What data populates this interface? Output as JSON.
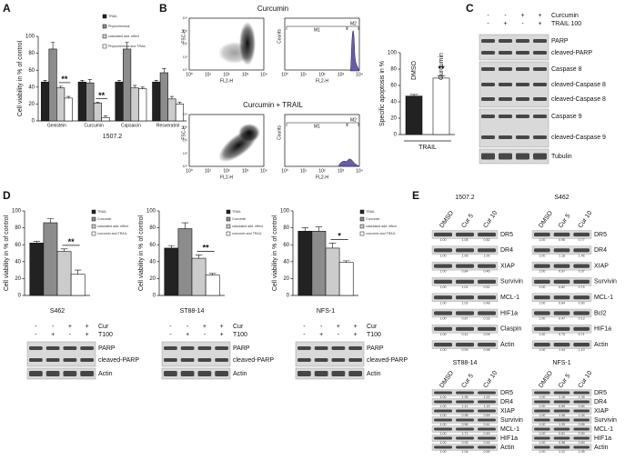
{
  "panel_labels": [
    "A",
    "B",
    "C",
    "D",
    "E"
  ],
  "chart_data": [
    {
      "type": "bar",
      "y_label": "Cell viability in % of control",
      "x_label": "1507.2",
      "categories": [
        "Genistein",
        "Curcumin",
        "Capsaicin",
        "Resveratrol"
      ],
      "series": [
        {
          "name": "TRAIL",
          "color": "#222222",
          "values": [
            46,
            46,
            46,
            46
          ],
          "errors": [
            2,
            2,
            2,
            2
          ]
        },
        {
          "name": "Phytochemical",
          "color": "#8c8c8c",
          "values": [
            85,
            45,
            85,
            57
          ],
          "errors": [
            8,
            4,
            8,
            5
          ]
        },
        {
          "name": "calculated add. effect",
          "color": "#cccccc",
          "values": [
            39,
            21,
            39,
            26
          ],
          "errors": [
            2,
            1,
            3,
            3
          ]
        },
        {
          "name": "Phytochemical and TRAIL",
          "color": "#ffffff",
          "values": [
            27,
            4,
            38,
            20
          ],
          "errors": [
            2,
            2,
            2,
            2
          ]
        }
      ],
      "ylim": [
        0,
        100
      ],
      "yticks": [
        0,
        20,
        40,
        60,
        80,
        100
      ],
      "annotations": [
        "**",
        "**"
      ]
    },
    {
      "type": "bar",
      "y_label": "Specific apoptosis in %",
      "x_label": "TRAIL",
      "categories": [
        "DMSO",
        "Curcumin"
      ],
      "values": [
        47,
        69
      ],
      "errors": [
        2,
        3
      ],
      "colors": [
        "#222222",
        "#ffffff"
      ],
      "ylim": [
        0,
        100
      ],
      "yticks": [
        0,
        20,
        40,
        60,
        80,
        100
      ],
      "annotations": [
        "**"
      ]
    },
    {
      "type": "bar",
      "y_label": "Cell viability in % of control",
      "x_label": "S462",
      "series": [
        {
          "name": "TRAIL",
          "color": "#222222",
          "values": [
            62
          ],
          "errors": [
            2
          ]
        },
        {
          "name": "Curcumin",
          "color": "#8c8c8c",
          "values": [
            86
          ],
          "errors": [
            5
          ]
        },
        {
          "name": "calculated add. effect",
          "color": "#cccccc",
          "values": [
            52
          ],
          "errors": [
            3
          ]
        },
        {
          "name": "curcumin and TRAIL",
          "color": "#ffffff",
          "values": [
            25
          ],
          "errors": [
            5
          ]
        }
      ],
      "ylim": [
        0,
        100
      ],
      "yticks": [
        0,
        20,
        40,
        60,
        80,
        100
      ],
      "annotations": [
        "**"
      ]
    },
    {
      "type": "bar",
      "y_label": "Cell viability in % of control",
      "x_label": "ST88-14",
      "series": [
        {
          "name": "TRAIL",
          "color": "#222222",
          "values": [
            56
          ],
          "errors": [
            3
          ]
        },
        {
          "name": "Curcumin",
          "color": "#8c8c8c",
          "values": [
            79
          ],
          "errors": [
            7
          ]
        },
        {
          "name": "calculated add. effect",
          "color": "#cccccc",
          "values": [
            44
          ],
          "errors": [
            4
          ]
        },
        {
          "name": "curcumin and TRAIL",
          "color": "#ffffff",
          "values": [
            24
          ],
          "errors": [
            2
          ]
        }
      ],
      "ylim": [
        0,
        100
      ],
      "yticks": [
        0,
        20,
        40,
        60,
        80,
        100
      ],
      "annotations": [
        "**"
      ]
    },
    {
      "type": "bar",
      "y_label": "Cell viability in % of control",
      "x_label": "NFS-1",
      "series": [
        {
          "name": "TRAIL",
          "color": "#222222",
          "values": [
            76
          ],
          "errors": [
            4
          ]
        },
        {
          "name": "Curcumin",
          "color": "#8c8c8c",
          "values": [
            76
          ],
          "errors": [
            5
          ]
        },
        {
          "name": "calculated add. effect",
          "color": "#cccccc",
          "values": [
            56
          ],
          "errors": [
            6
          ]
        },
        {
          "name": "curcumin and TRAIL",
          "color": "#ffffff",
          "values": [
            39
          ],
          "errors": [
            2
          ]
        }
      ],
      "ylim": [
        0,
        100
      ],
      "yticks": [
        0,
        20,
        40,
        60,
        80,
        100
      ],
      "annotations": [
        "*"
      ]
    }
  ],
  "flow_cytometry": {
    "rows": [
      {
        "title": "Curcumin"
      },
      {
        "title": "Curcumin + TRAIL"
      }
    ],
    "dot_y_label": "FSC-H",
    "x_label": "FL2-H",
    "hist_y_label": "Counts",
    "gates": [
      "M1",
      "M2"
    ],
    "ticks": [
      "10⁰",
      "10¹",
      "10²",
      "10³",
      "10⁴"
    ]
  },
  "blot_c": {
    "conditions": [
      {
        "label": "Curcumin",
        "signs": [
          "-",
          "-",
          "+",
          "+"
        ]
      },
      {
        "label": "TRAIL 100",
        "signs": [
          "-",
          "+",
          "-",
          "+"
        ]
      }
    ],
    "proteins": [
      "PARP",
      "cleaved-PARP",
      "Caspase 8",
      "cleaved-Caspase 8",
      "cleaved-Caspase 8",
      "Caspase 9",
      "cleaved-Caspase 9",
      "Tubulin"
    ]
  },
  "blots_d": [
    {
      "conditions": [
        {
          "label": "Cur",
          "signs": [
            "-",
            "-",
            "+",
            "+"
          ]
        },
        {
          "label": "T100",
          "signs": [
            "-",
            "+",
            "-",
            "+"
          ]
        }
      ],
      "proteins": [
        "PARP",
        "cleaved-PARP",
        "Actin"
      ]
    },
    {
      "conditions": [
        {
          "label": "Cur",
          "signs": [
            "-",
            "-",
            "+",
            "+"
          ]
        },
        {
          "label": "T100",
          "signs": [
            "-",
            "+",
            "-",
            "+"
          ]
        }
      ],
      "proteins": [
        "PARP",
        "cleaved-PARP",
        "Actin"
      ]
    },
    {
      "conditions": [
        {
          "label": "Cur",
          "signs": [
            "-",
            "-",
            "+",
            "+"
          ]
        },
        {
          "label": "T100",
          "signs": [
            "-",
            "+",
            "-",
            "+"
          ]
        }
      ],
      "proteins": [
        "PARP",
        "cleaved-PARP",
        "Actin"
      ]
    }
  ],
  "blots_e": [
    {
      "title": "1507.2",
      "lanes": [
        "DMSO",
        "Cur 5",
        "Cur 10"
      ],
      "rows": [
        {
          "protein": "DR5",
          "quant": [
            "1.00",
            "1.08",
            "0.82"
          ]
        },
        {
          "protein": "DR4",
          "quant": [
            "1.00",
            "1.06",
            "1.00"
          ]
        },
        {
          "protein": "XIAP",
          "quant": [
            "1.00",
            "0.84",
            "0.46"
          ]
        },
        {
          "protein": "Survivin",
          "quant": [
            "1.00",
            "1.01",
            "0.51"
          ]
        },
        {
          "protein": "MCL-1",
          "quant": [
            "1.00",
            "1.02",
            "0.48"
          ]
        },
        {
          "protein": "HIF1a",
          "quant": [
            "1.00",
            "0.87",
            "0.33"
          ]
        },
        {
          "protein": "Claspin",
          "quant": [
            "1.00",
            "0.41",
            "0.09"
          ]
        },
        {
          "protein": "Actin",
          "quant": [
            "1.00",
            "0.93",
            "0.98"
          ]
        }
      ]
    },
    {
      "title": "S462",
      "lanes": [
        "DMSO",
        "Cur 5",
        "Cur 10"
      ],
      "rows": [
        {
          "protein": "DR5",
          "quant": [
            "1.00",
            "0.96",
            "0.77"
          ]
        },
        {
          "protein": "DR4",
          "quant": [
            "1.00",
            "1.18",
            "1.46"
          ]
        },
        {
          "protein": "XIAP",
          "quant": [
            "1.00",
            "0.97",
            "0.37"
          ]
        },
        {
          "protein": "Survivin",
          "quant": [
            "1.00",
            "0.82",
            "0.74"
          ]
        },
        {
          "protein": "MCL-1",
          "quant": [
            "1.00",
            "0.84",
            "0.90"
          ]
        },
        {
          "protein": "Bcl2",
          "quant": [
            "1.00",
            "0.47",
            "0.13"
          ]
        },
        {
          "protein": "HIF1a",
          "quant": [
            "1.00",
            "0.75",
            "0.71"
          ]
        },
        {
          "protein": "Actin",
          "quant": [
            "1.00",
            "1.04",
            "1.10"
          ]
        }
      ]
    },
    {
      "title": "ST88-14",
      "lanes": [
        "DMSO",
        "Cur 5",
        "Cur 10"
      ],
      "rows": [
        {
          "protein": "DR5",
          "quant": [
            "1.00",
            "1.35",
            "1.22"
          ]
        },
        {
          "protein": "DR4",
          "quant": [
            "1.00",
            "1.11",
            "1.15"
          ]
        },
        {
          "protein": "XIAP",
          "quant": [
            "1.00",
            "0.98",
            "0.69"
          ]
        },
        {
          "protein": "Survivin",
          "quant": [
            "1.00",
            "0.96",
            "0.41"
          ]
        },
        {
          "protein": "MCL-1",
          "quant": [
            "1.00",
            "1.71",
            "0.49"
          ]
        },
        {
          "protein": "HIF1a",
          "quant": [
            "1.00",
            "0.93",
            "0.53"
          ]
        },
        {
          "protein": "Actin",
          "quant": [
            "1.00",
            "1.04",
            "0.99"
          ]
        }
      ]
    },
    {
      "title": "NFS-1",
      "lanes": [
        "DMSO",
        "Cur 5",
        "Cur 10"
      ],
      "rows": [
        {
          "protein": "DR5",
          "quant": [
            "1.00",
            "1.18",
            "1.35"
          ]
        },
        {
          "protein": "DR4",
          "quant": [
            "1.00",
            "0.85",
            "0.84"
          ]
        },
        {
          "protein": "XIAP",
          "quant": [
            "1.00",
            "1.08",
            "1.04"
          ]
        },
        {
          "protein": "Survivin",
          "quant": [
            "1.00",
            "1.05",
            "0.85"
          ]
        },
        {
          "protein": "MCL-1",
          "quant": [
            "1.00",
            "0.81",
            "0.90"
          ]
        },
        {
          "protein": "HIF1a",
          "quant": [
            "1.00",
            "0.98",
            "0.83"
          ]
        },
        {
          "protein": "Actin",
          "quant": [
            "1.00",
            "1.12",
            "1.05"
          ]
        }
      ]
    }
  ]
}
